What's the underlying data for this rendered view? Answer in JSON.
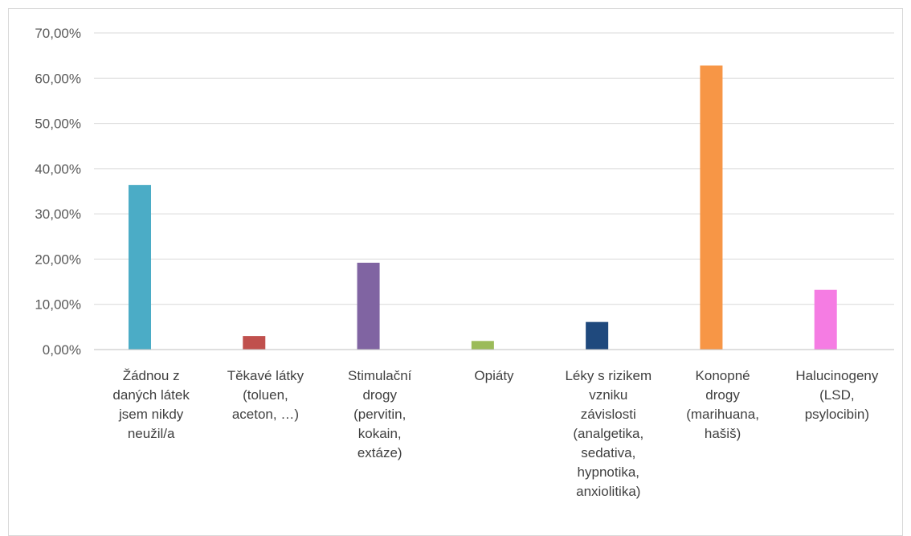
{
  "chart_data": {
    "type": "bar",
    "title": "",
    "xlabel": "",
    "ylabel": "",
    "ylim": [
      0,
      70
    ],
    "ytick_step": 10,
    "ytick_labels": [
      "0,00%",
      "10,00%",
      "20,00%",
      "30,00%",
      "40,00%",
      "50,00%",
      "60,00%",
      "70,00%"
    ],
    "grid": true,
    "legend": "none",
    "categories": [
      [
        "Žádnou z",
        "daných látek",
        "jsem nikdy",
        "neužil/a"
      ],
      [
        "Těkavé látky",
        "(toluen,",
        "aceton, …)"
      ],
      [
        "Stimulační",
        "drogy",
        "(pervitin,",
        "kokain,",
        "extáze)"
      ],
      [
        "Opiáty"
      ],
      [
        "Léky s rizikem",
        "vzniku",
        "závislosti",
        "(analgetika,",
        "sedativa,",
        "hypnotika,",
        "anxiolitika)"
      ],
      [
        "Konopné",
        "drogy",
        "(marihuana,",
        "hašiš)"
      ],
      [
        "Halucinogeny",
        "(LSD,",
        "psylocibin)"
      ]
    ],
    "values": [
      36.4,
      3.0,
      19.2,
      1.9,
      6.1,
      62.8,
      13.2
    ],
    "colors": [
      "#4bacc6",
      "#c0504d",
      "#8064a2",
      "#9bbb59",
      "#1f497d",
      "#f79646",
      "#f57ce3"
    ]
  }
}
